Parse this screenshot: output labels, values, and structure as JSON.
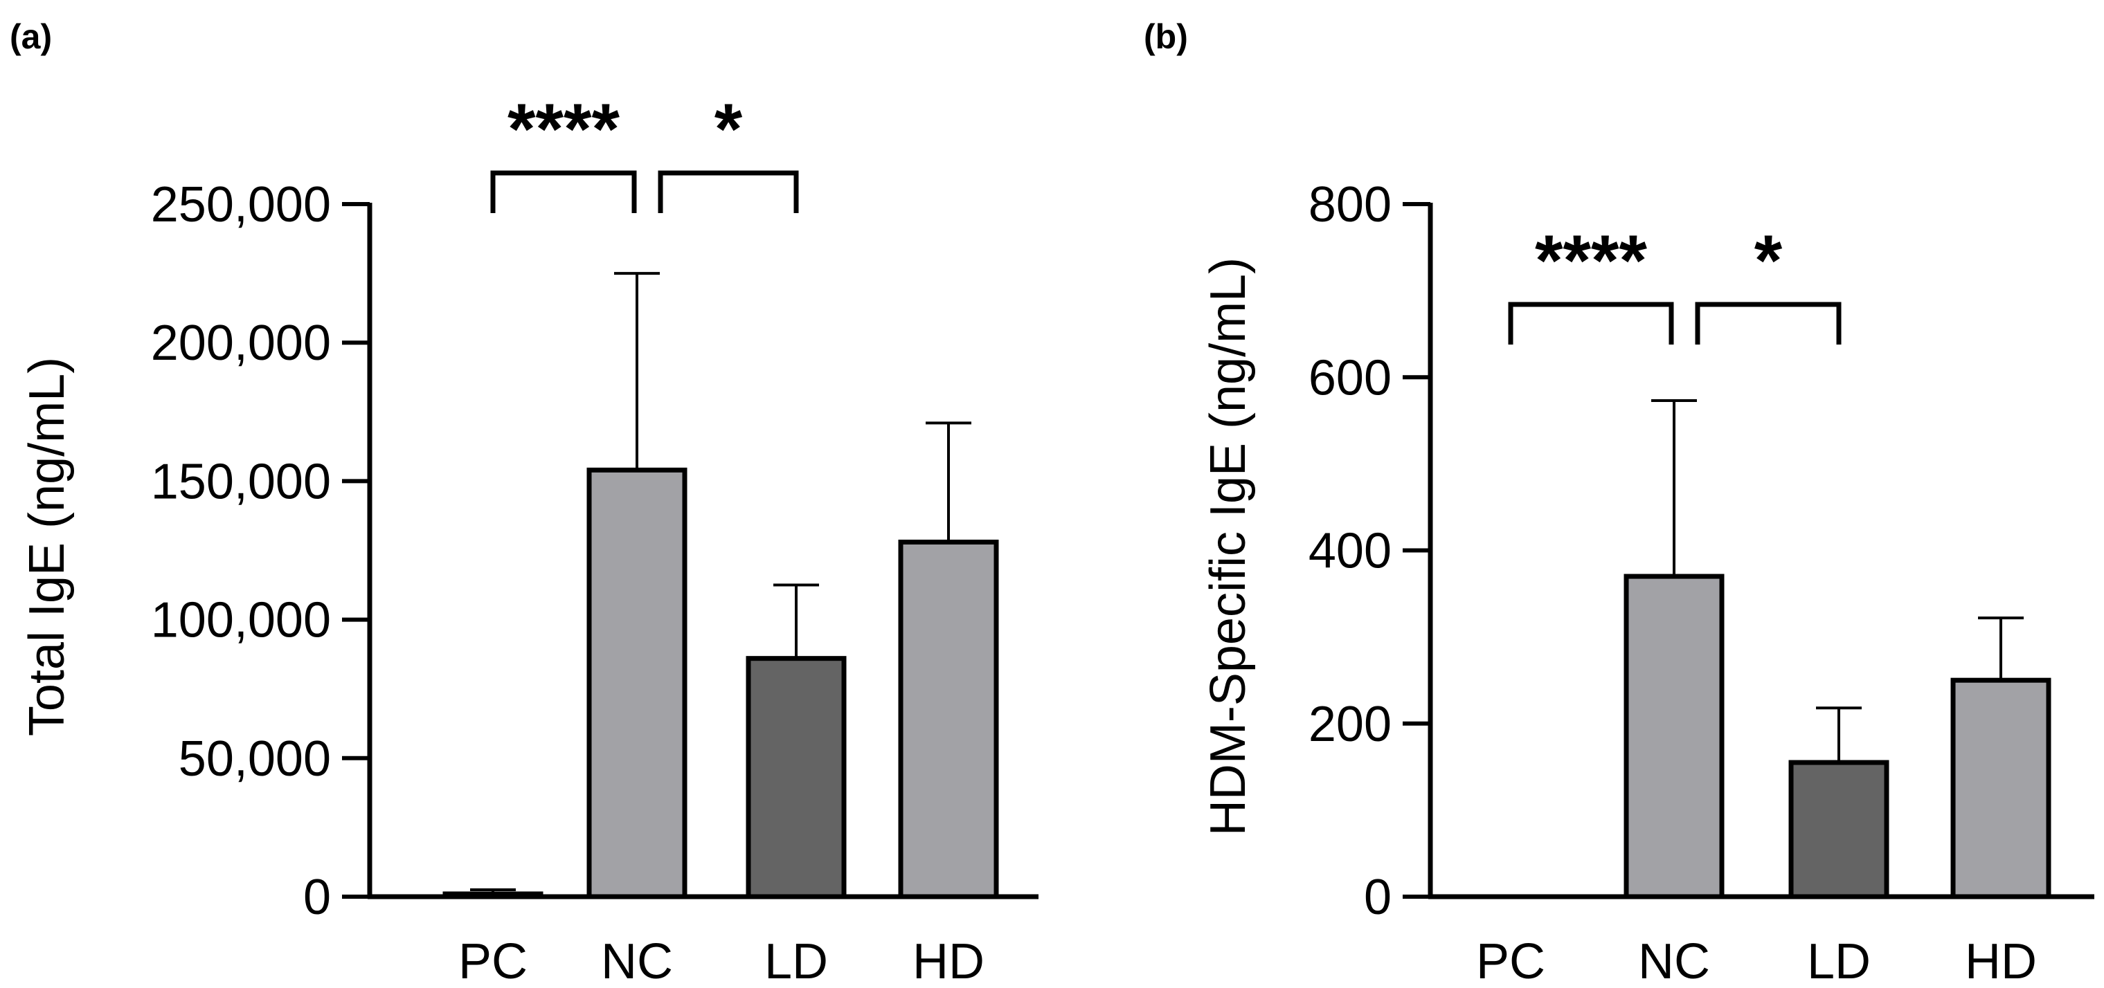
{
  "figure": {
    "panels": [
      "(a)",
      "(b)"
    ]
  },
  "chart_data": [
    {
      "type": "bar",
      "panel_label": "(a)",
      "title": "",
      "xlabel": "",
      "ylabel": "Total IgE (ng/mL)",
      "categories": [
        "PC",
        "NC",
        "LD",
        "HD"
      ],
      "values": [
        1000,
        154000,
        86000,
        128000
      ],
      "error_upper": [
        2500,
        225000,
        112500,
        171000
      ],
      "bar_colors": [
        "#a2a2a6",
        "#a2a2a6",
        "#646464",
        "#a2a2a6"
      ],
      "ylim": [
        0,
        250000
      ],
      "yticks": [
        0,
        50000,
        100000,
        150000,
        200000,
        250000
      ],
      "ytick_labels": [
        "0",
        "50,000",
        "100,000",
        "150,000",
        "200,000",
        "250,000"
      ],
      "grid": false,
      "significance": [
        {
          "from": "PC",
          "to": "NC",
          "label": "****"
        },
        {
          "from": "NC",
          "to": "LD",
          "label": "*"
        }
      ]
    },
    {
      "type": "bar",
      "panel_label": "(b)",
      "title": "",
      "xlabel": "",
      "ylabel": "HDM-Specific IgE (ng/mL)",
      "categories": [
        "PC",
        "NC",
        "LD",
        "HD"
      ],
      "values": [
        0,
        370,
        155,
        250
      ],
      "error_upper": [
        0,
        573,
        218,
        322
      ],
      "bar_colors": [
        "#a2a2a6",
        "#a2a2a6",
        "#646464",
        "#a2a2a6"
      ],
      "ylim": [
        0,
        800
      ],
      "yticks": [
        0,
        200,
        400,
        600,
        800
      ],
      "ytick_labels": [
        "0",
        "200",
        "400",
        "600",
        "800"
      ],
      "grid": false,
      "significance": [
        {
          "from": "PC",
          "to": "NC",
          "label": "****"
        },
        {
          "from": "NC",
          "to": "LD",
          "label": "*"
        }
      ]
    }
  ]
}
